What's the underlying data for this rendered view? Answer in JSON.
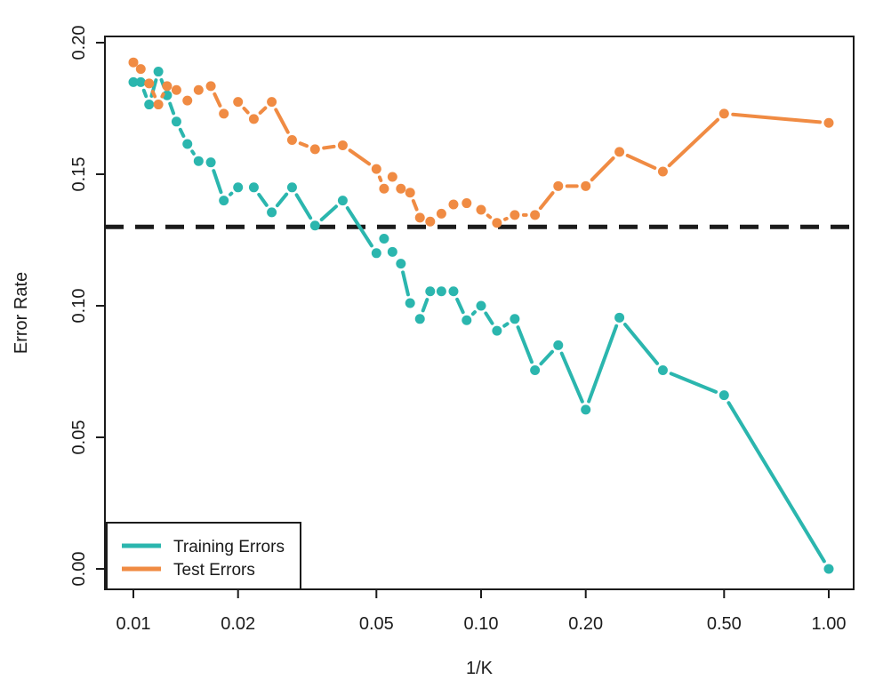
{
  "figure": {
    "xlabel": "1/K",
    "ylabel": "Error Rate",
    "legend_items": [
      {
        "label": "Training Errors",
        "color": "#2bb6ae"
      },
      {
        "label": "Test Errors",
        "color": "#f08b43"
      }
    ]
  },
  "chart_data": {
    "type": "line",
    "title": "",
    "xlabel": "1/K",
    "ylabel": "Error Rate",
    "x_scale": "log",
    "grid": false,
    "legend_position": "bottom-left",
    "xlim_log": [
      -2.08,
      0.07
    ],
    "ylim": [
      0.0,
      0.2
    ],
    "x_ticks": [
      0.01,
      0.02,
      0.05,
      0.1,
      0.2,
      0.5,
      1.0
    ],
    "x_tick_labels": [
      "0.01",
      "0.02",
      "0.05",
      "0.10",
      "0.20",
      "0.50",
      "1.00"
    ],
    "y_ticks": [
      0.0,
      0.05,
      0.1,
      0.15,
      0.2
    ],
    "y_tick_labels": [
      "0.00",
      "0.05",
      "0.10",
      "0.15",
      "0.20"
    ],
    "bayes_error_line": {
      "value": 0.13,
      "style": "dashed",
      "color": "#1b1b1b"
    },
    "k_values": [
      100,
      95,
      90,
      85,
      80,
      75,
      70,
      65,
      60,
      55,
      50,
      45,
      40,
      35,
      30,
      25,
      20,
      19,
      18,
      17,
      16,
      15,
      14,
      13,
      12,
      11,
      10,
      9,
      8,
      7,
      6,
      5,
      4,
      3,
      2,
      1
    ],
    "x": [
      0.01,
      0.0105,
      0.0111,
      0.0118,
      0.0125,
      0.0133,
      0.0143,
      0.0154,
      0.0167,
      0.0182,
      0.02,
      0.0222,
      0.025,
      0.0286,
      0.0333,
      0.04,
      0.05,
      0.0526,
      0.0556,
      0.0588,
      0.0625,
      0.0667,
      0.0714,
      0.0769,
      0.0833,
      0.0909,
      0.1,
      0.1111,
      0.125,
      0.1429,
      0.1667,
      0.2,
      0.25,
      0.3333,
      0.5,
      1.0
    ],
    "series": [
      {
        "name": "Training Errors",
        "color": "#2bb6ae",
        "values": [
          0.185,
          0.185,
          0.1765,
          0.189,
          0.18,
          0.17,
          0.1615,
          0.155,
          0.1545,
          0.14,
          0.145,
          0.145,
          0.1355,
          0.145,
          0.1305,
          0.14,
          0.12,
          0.1255,
          0.1205,
          0.116,
          0.101,
          0.095,
          0.1055,
          0.1055,
          0.1055,
          0.0945,
          0.1,
          0.0905,
          0.095,
          0.0755,
          0.085,
          0.0605,
          0.0955,
          0.0755,
          0.066,
          0.0
        ]
      },
      {
        "name": "Test Errors",
        "color": "#f08b43",
        "values": [
          0.1925,
          0.19,
          0.1845,
          0.1765,
          0.1835,
          0.182,
          0.178,
          0.182,
          0.1835,
          0.173,
          0.1775,
          0.171,
          0.1775,
          0.163,
          0.1595,
          0.161,
          0.152,
          0.1445,
          0.149,
          0.1445,
          0.143,
          0.1335,
          0.132,
          0.135,
          0.1385,
          0.139,
          0.1365,
          0.1315,
          0.1345,
          0.1345,
          0.1455,
          0.1455,
          0.1585,
          0.151,
          0.173,
          0.1695
        ]
      }
    ]
  }
}
